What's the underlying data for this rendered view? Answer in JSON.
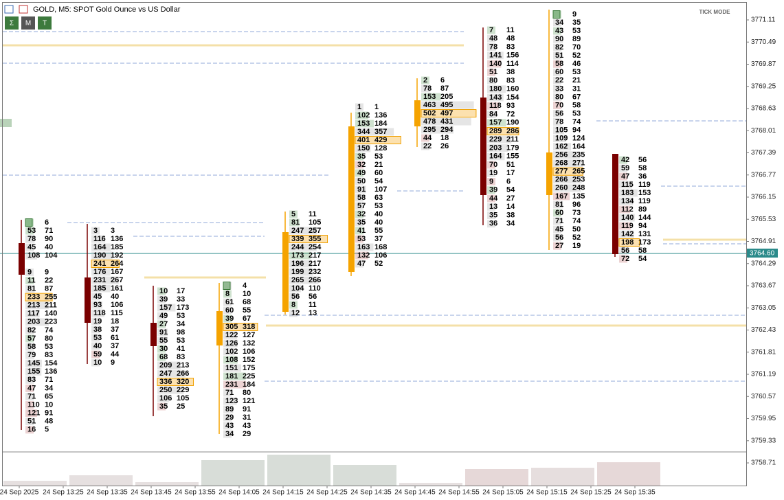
{
  "header": {
    "title": "GOLD, M5:  SPOT Gold Ounce vs US Dollar",
    "buttons": [
      "Σ",
      "M",
      "T"
    ],
    "mode": "TICK MODE"
  },
  "price_axis": [
    "3771.11",
    "3770.49",
    "3769.87",
    "3769.25",
    "3768.63",
    "3768.01",
    "3767.39",
    "3766.77",
    "3766.15",
    "3765.53",
    "3764.91",
    "3764.29",
    "3763.67",
    "3763.05",
    "3762.43",
    "3761.81",
    "3761.19",
    "3760.57",
    "3759.95",
    "3759.33",
    "3758.71"
  ],
  "current_price": "3764.60",
  "time_axis": [
    "24 Sep 2025",
    "24 Sep 13:25",
    "24 Sep 13:35",
    "24 Sep 13:45",
    "24 Sep 13:55",
    "24 Sep 14:05",
    "24 Sep 14:15",
    "24 Sep 14:25",
    "24 Sep 14:35",
    "24 Sep 14:45",
    "24 Sep 14:55",
    "24 Sep 15:05",
    "24 Sep 15:15",
    "24 Sep 15:25",
    "24 Sep 15:35"
  ],
  "columns": [
    {
      "rows": [
        [
          null,
          "6"
        ],
        [
          "53",
          "71"
        ],
        [
          "78",
          "90"
        ],
        [
          "45",
          "40"
        ],
        [
          "108",
          "104"
        ],
        [
          null,
          null
        ],
        [
          "9",
          "9"
        ],
        [
          "11",
          "22"
        ],
        [
          "81",
          "87"
        ],
        [
          "233",
          "255"
        ],
        [
          "213",
          "211"
        ],
        [
          "117",
          "140"
        ],
        [
          "203",
          "223"
        ],
        [
          "82",
          "74"
        ],
        [
          "57",
          "80"
        ],
        [
          "58",
          "53"
        ],
        [
          "79",
          "83"
        ],
        [
          "145",
          "154"
        ],
        [
          "155",
          "136"
        ],
        [
          "83",
          "71"
        ],
        [
          "47",
          "34"
        ],
        [
          "71",
          "65"
        ],
        [
          "110",
          "10"
        ],
        [
          "121",
          "91"
        ],
        [
          "51",
          "48"
        ],
        [
          "16",
          "5"
        ]
      ]
    },
    {
      "rows": [
        [
          "3",
          "3"
        ],
        [
          "116",
          "136"
        ],
        [
          "164",
          "185"
        ],
        [
          "190",
          "192"
        ],
        [
          "241",
          "264"
        ],
        [
          "176",
          "167"
        ],
        [
          "231",
          "267"
        ],
        [
          "185",
          "161"
        ],
        [
          "45",
          "40"
        ],
        [
          "93",
          "106"
        ],
        [
          "118",
          "115"
        ],
        [
          "19",
          "18"
        ],
        [
          "38",
          "37"
        ],
        [
          "53",
          "61"
        ],
        [
          "40",
          "37"
        ],
        [
          "59",
          "44"
        ],
        [
          "10",
          "9"
        ]
      ]
    },
    {
      "rows": [
        [
          "10",
          "17"
        ],
        [
          "39",
          "33"
        ],
        [
          "157",
          "173"
        ],
        [
          "49",
          "53"
        ],
        [
          "27",
          "34"
        ],
        [
          "91",
          "98"
        ],
        [
          "55",
          "53"
        ],
        [
          "30",
          "41"
        ],
        [
          "68",
          "83"
        ],
        [
          "209",
          "213"
        ],
        [
          "247",
          "266"
        ],
        [
          "336",
          "320"
        ],
        [
          "250",
          "229"
        ],
        [
          "106",
          "105"
        ],
        [
          "35",
          "25"
        ]
      ]
    },
    {
      "rows": [
        [
          null,
          "4"
        ],
        [
          "8",
          "10"
        ],
        [
          "61",
          "68"
        ],
        [
          "60",
          "55"
        ],
        [
          "39",
          "67"
        ],
        [
          "305",
          "318"
        ],
        [
          "122",
          "127"
        ],
        [
          "126",
          "132"
        ],
        [
          "102",
          "106"
        ],
        [
          "108",
          "152"
        ],
        [
          "151",
          "175"
        ],
        [
          "181",
          "225"
        ],
        [
          "231",
          "184"
        ],
        [
          "71",
          "80"
        ],
        [
          "123",
          "121"
        ],
        [
          "89",
          "91"
        ],
        [
          "29",
          "31"
        ],
        [
          "43",
          "43"
        ],
        [
          "34",
          "29"
        ]
      ]
    },
    {
      "rows": [
        [
          "5",
          "11"
        ],
        [
          "81",
          "105"
        ],
        [
          "247",
          "257"
        ],
        [
          "339",
          "355"
        ],
        [
          "244",
          "254"
        ],
        [
          "173",
          "217"
        ],
        [
          "196",
          "217"
        ],
        [
          "199",
          "232"
        ],
        [
          "265",
          "266"
        ],
        [
          "104",
          "110"
        ],
        [
          "56",
          "56"
        ],
        [
          "8",
          "11"
        ],
        [
          "12",
          "13"
        ]
      ]
    },
    {
      "rows": [
        [
          "1",
          "1"
        ],
        [
          "102",
          "136"
        ],
        [
          "153",
          "184"
        ],
        [
          "344",
          "357"
        ],
        [
          "401",
          "429"
        ],
        [
          "150",
          "128"
        ],
        [
          "35",
          "53"
        ],
        [
          "32",
          "21"
        ],
        [
          "49",
          "60"
        ],
        [
          "50",
          "54"
        ],
        [
          "91",
          "107"
        ],
        [
          "58",
          "63"
        ],
        [
          "57",
          "53"
        ],
        [
          "32",
          "40"
        ],
        [
          "35",
          "40"
        ],
        [
          "41",
          "55"
        ],
        [
          "53",
          "37"
        ],
        [
          "163",
          "168"
        ],
        [
          "132",
          "106"
        ],
        [
          "47",
          "52"
        ]
      ]
    },
    {
      "rows": [
        [
          "2",
          "6"
        ],
        [
          "78",
          "87"
        ],
        [
          "153",
          "205"
        ],
        [
          "463",
          "495"
        ],
        [
          "502",
          "497"
        ],
        [
          "478",
          "431"
        ],
        [
          "295",
          "294"
        ],
        [
          "44",
          "18"
        ],
        [
          "22",
          "26"
        ]
      ]
    },
    {
      "rows": [
        [
          "7",
          "11"
        ],
        [
          "48",
          "48"
        ],
        [
          "78",
          "83"
        ],
        [
          "141",
          "156"
        ],
        [
          "140",
          "114"
        ],
        [
          "51",
          "38"
        ],
        [
          "80",
          "83"
        ],
        [
          "180",
          "160"
        ],
        [
          "143",
          "154"
        ],
        [
          "118",
          "93"
        ],
        [
          "84",
          "72"
        ],
        [
          "157",
          "190"
        ],
        [
          "289",
          "286"
        ],
        [
          "229",
          "211"
        ],
        [
          "203",
          "179"
        ],
        [
          "164",
          "155"
        ],
        [
          "70",
          "51"
        ],
        [
          "19",
          "17"
        ],
        [
          "9",
          "6"
        ],
        [
          "39",
          "54"
        ],
        [
          "44",
          "27"
        ],
        [
          "13",
          "14"
        ],
        [
          "35",
          "38"
        ],
        [
          "36",
          "34"
        ]
      ]
    },
    {
      "rows": [
        [
          null,
          "9"
        ],
        [
          "34",
          "35"
        ],
        [
          "43",
          "53"
        ],
        [
          "90",
          "89"
        ],
        [
          "82",
          "70"
        ],
        [
          "51",
          "52"
        ],
        [
          "58",
          "46"
        ],
        [
          "60",
          "53"
        ],
        [
          "22",
          "21"
        ],
        [
          "33",
          "31"
        ],
        [
          "80",
          "67"
        ],
        [
          "70",
          "58"
        ],
        [
          "56",
          "53"
        ],
        [
          "78",
          "74"
        ],
        [
          "105",
          "94"
        ],
        [
          "109",
          "124"
        ],
        [
          "162",
          "164"
        ],
        [
          "256",
          "235"
        ],
        [
          "268",
          "271"
        ],
        [
          "277",
          "265"
        ],
        [
          "266",
          "253"
        ],
        [
          "260",
          "248"
        ],
        [
          "167",
          "135"
        ],
        [
          "81",
          "96"
        ],
        [
          "60",
          "73"
        ],
        [
          "71",
          "74"
        ],
        [
          "45",
          "50"
        ],
        [
          "56",
          "52"
        ],
        [
          "27",
          "19"
        ]
      ]
    },
    {
      "rows": [
        [
          "42",
          "56"
        ],
        [
          "59",
          "58"
        ],
        [
          "47",
          "36"
        ],
        [
          "115",
          "119"
        ],
        [
          "183",
          "153"
        ],
        [
          "134",
          "119"
        ],
        [
          "112",
          "89"
        ],
        [
          "140",
          "144"
        ],
        [
          "119",
          "94"
        ],
        [
          "142",
          "131"
        ],
        [
          "198",
          "173"
        ],
        [
          "56",
          "58"
        ],
        [
          "72",
          "54"
        ]
      ]
    }
  ]
}
